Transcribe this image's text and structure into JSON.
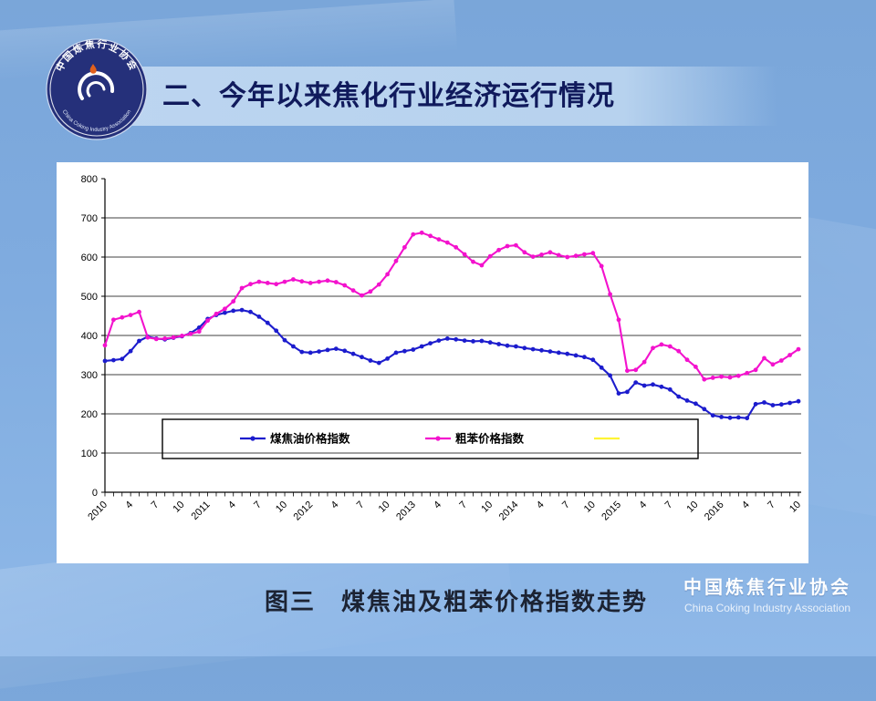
{
  "slide": {
    "title": "二、今年以来焦化行业经济运行情况",
    "caption": "图三　煤焦油及粗苯价格指数走势",
    "footer_org_cn": "中国炼焦行业协会",
    "footer_org_en": "China Coking Industry Association",
    "logo_text_top": "中国炼焦行业协会",
    "logo_text_bottom": "China Coking Industry Association"
  },
  "chart_data": {
    "type": "line",
    "title": "",
    "grid": "horizontal",
    "legend_position": "bottom-inside",
    "x_axis": {
      "unit": "month",
      "start": "2010-01",
      "end": "2016-10",
      "tick_labels": [
        "2010",
        "4",
        "7",
        "10",
        "2011",
        "4",
        "7",
        "10",
        "2012",
        "4",
        "7",
        "10",
        "2013",
        "4",
        "7",
        "10",
        "2014",
        "4",
        "7",
        "10",
        "2015",
        "4",
        "7",
        "10",
        "2016",
        "4",
        "7",
        "10"
      ]
    },
    "y_axis": {
      "min": 0,
      "max": 800,
      "tick_step": 100,
      "tick_labels": [
        "0",
        "100",
        "200",
        "300",
        "400",
        "500",
        "600",
        "700",
        "800"
      ]
    },
    "series": [
      {
        "name": "煤焦油价格指数",
        "color": "#1c1ccd",
        "marker": "circle",
        "values": [
          335,
          337,
          340,
          360,
          386,
          397,
          392,
          390,
          394,
          398,
          406,
          420,
          442,
          452,
          458,
          463,
          465,
          460,
          448,
          432,
          412,
          388,
          372,
          358,
          356,
          359,
          363,
          366,
          361,
          353,
          345,
          336,
          330,
          341,
          356,
          360,
          364,
          372,
          380,
          387,
          392,
          390,
          387,
          385,
          386,
          382,
          378,
          374,
          372,
          368,
          365,
          362,
          359,
          356,
          353,
          349,
          345,
          338,
          318,
          298,
          252,
          256,
          280,
          272,
          275,
          269,
          262,
          244,
          234,
          226,
          212,
          196,
          192,
          190,
          191,
          189,
          225,
          229,
          222,
          224,
          228,
          232
        ]
      },
      {
        "name": "粗苯价格指数",
        "color": "#f312cd",
        "marker": "circle",
        "values": [
          375,
          440,
          446,
          452,
          460,
          395,
          391,
          392,
          395,
          399,
          404,
          410,
          438,
          455,
          468,
          487,
          521,
          531,
          537,
          534,
          531,
          537,
          543,
          538,
          534,
          537,
          540,
          536,
          528,
          515,
          502,
          512,
          530,
          556,
          590,
          625,
          658,
          662,
          654,
          645,
          637,
          625,
          607,
          588,
          579,
          602,
          618,
          628,
          630,
          612,
          601,
          606,
          612,
          605,
          600,
          603,
          607,
          610,
          577,
          505,
          440,
          310,
          312,
          332,
          368,
          377,
          372,
          360,
          338,
          320,
          288,
          292,
          295,
          293,
          297,
          304,
          312,
          342,
          326,
          336,
          350,
          365
        ]
      },
      {
        "name": "",
        "color": "#fef435",
        "marker": "none",
        "values": []
      }
    ]
  }
}
